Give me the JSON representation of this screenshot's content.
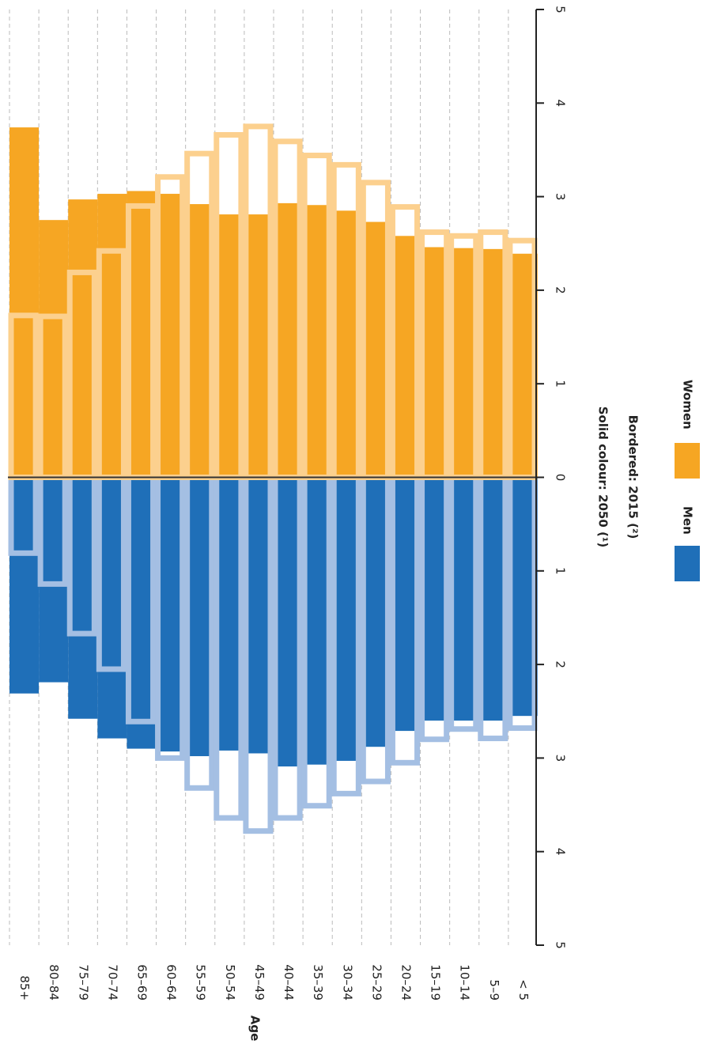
{
  "chart_data": {
    "type": "pyramid",
    "x_axis_label": "Age",
    "categories": [
      "85+",
      "80–84",
      "75–79",
      "70–74",
      "65–69",
      "60–64",
      "55–59",
      "50–54",
      "45–49",
      "40–44",
      "35–39",
      "30–34",
      "25–29",
      "20–24",
      "15–19",
      "10–14",
      "5–9",
      "< 5"
    ],
    "solid_label": "Solid colour: 2050 (¹)",
    "bordered_label": "Bordered: 2015 (²)",
    "series": [
      {
        "name": "Men",
        "color": "#1f6fb8",
        "border_color": "#a4bfe3",
        "solid_values": [
          -2.31,
          -2.19,
          -2.58,
          -2.79,
          -2.9,
          -2.93,
          -2.98,
          -2.92,
          -2.95,
          -3.09,
          -3.07,
          -3.03,
          -2.88,
          -2.71,
          -2.6,
          -2.6,
          -2.6,
          -2.55
        ],
        "bordered_values": [
          -0.81,
          -1.14,
          -1.67,
          -2.05,
          -2.61,
          -3.0,
          -3.32,
          -3.64,
          -3.78,
          -3.64,
          -3.51,
          -3.38,
          -3.25,
          -3.05,
          -2.8,
          -2.69,
          -2.79,
          -2.68
        ]
      },
      {
        "name": "Women",
        "color": "#f6a623",
        "border_color": "#fcd08e",
        "solid_values": [
          3.74,
          2.75,
          2.97,
          3.03,
          3.06,
          3.03,
          2.92,
          2.81,
          2.81,
          2.93,
          2.91,
          2.85,
          2.73,
          2.58,
          2.46,
          2.45,
          2.44,
          2.39
        ],
        "bordered_values": [
          1.73,
          1.72,
          2.19,
          2.42,
          2.9,
          3.21,
          3.46,
          3.66,
          3.75,
          3.59,
          3.44,
          3.34,
          3.15,
          2.89,
          2.62,
          2.58,
          2.62,
          2.53
        ]
      }
    ],
    "ylim": [
      -5,
      5
    ],
    "yticks": [
      {
        "value": -5,
        "label": "5"
      },
      {
        "value": -4,
        "label": "4"
      },
      {
        "value": -3,
        "label": "3"
      },
      {
        "value": -2,
        "label": "2"
      },
      {
        "value": -1,
        "label": "1"
      },
      0,
      1,
      2,
      3,
      4,
      5
    ],
    "grid": true
  }
}
